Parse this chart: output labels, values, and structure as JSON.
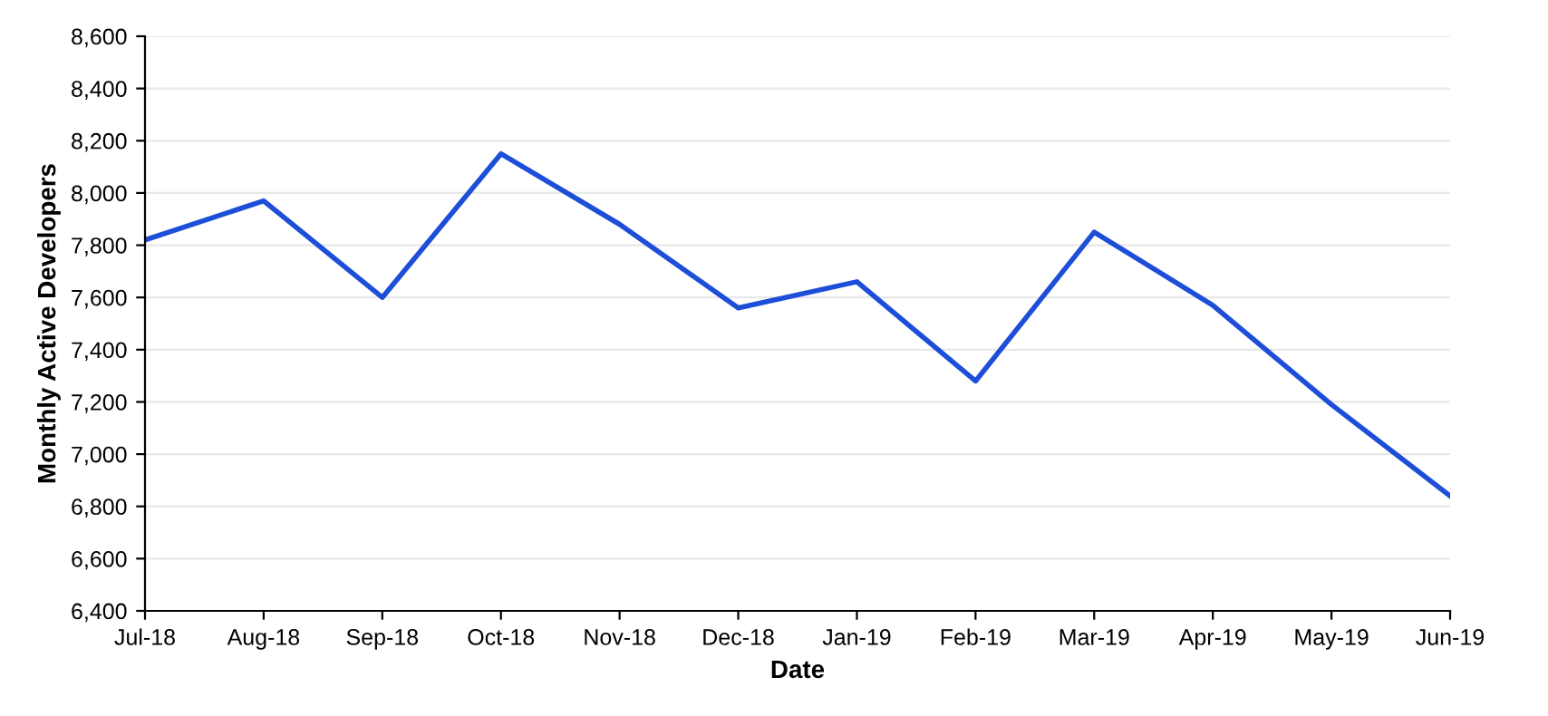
{
  "chart_data": {
    "type": "line",
    "xlabel": "Date",
    "ylabel": "Monthly Active Developers",
    "categories": [
      "Jul-18",
      "Aug-18",
      "Sep-18",
      "Oct-18",
      "Nov-18",
      "Dec-18",
      "Jan-19",
      "Feb-19",
      "Mar-19",
      "Apr-19",
      "May-19",
      "Jun-19"
    ],
    "series": [
      {
        "color": "#1d4ed8",
        "values": [
          7820,
          7970,
          7600,
          8150,
          7880,
          7560,
          7660,
          7280,
          7850,
          7570,
          7190,
          6840
        ]
      }
    ],
    "ylim": [
      6400,
      8600
    ],
    "yticks": [
      {
        "value": 6400,
        "label": "6,400"
      },
      {
        "value": 6600,
        "label": "6,600"
      },
      {
        "value": 6800,
        "label": "6,800"
      },
      {
        "value": 7000,
        "label": "7,000"
      },
      {
        "value": 7200,
        "label": "7,200"
      },
      {
        "value": 7400,
        "label": "7,400"
      },
      {
        "value": 7600,
        "label": "7,600"
      },
      {
        "value": 7800,
        "label": "7,800"
      },
      {
        "value": 8000,
        "label": "8,000"
      },
      {
        "value": 8200,
        "label": "8,200"
      },
      {
        "value": 8400,
        "label": "8,400"
      },
      {
        "value": 8600,
        "label": "8,600"
      }
    ],
    "grid": "y",
    "marker": "none",
    "line_style": "solid"
  }
}
